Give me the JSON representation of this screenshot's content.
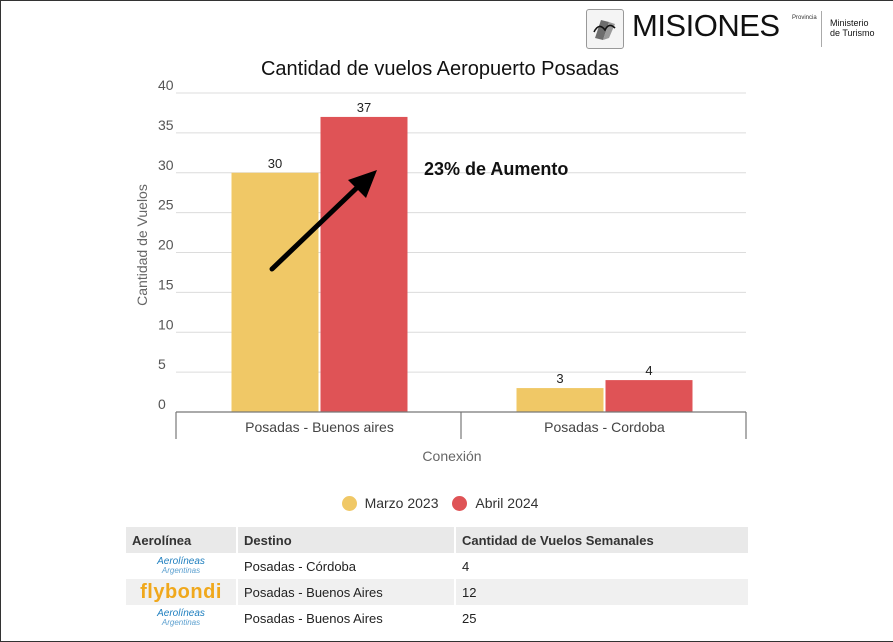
{
  "header": {
    "brand": "MISIONES",
    "brand_superscript": "Provincia",
    "ministry_line1": "Ministerio",
    "ministry_line2": "de Turismo"
  },
  "chart_data": {
    "type": "bar",
    "title": "Cantidad de vuelos Aeropuerto Posadas",
    "xlabel": "Conexión",
    "ylabel": "Cantidad de Vuelos",
    "ylim": [
      0,
      40
    ],
    "yticks": [
      "0",
      "5",
      "10",
      "15",
      "20",
      "25",
      "30",
      "35",
      "40"
    ],
    "grid": true,
    "legend_position": "bottom",
    "categories": [
      "Posadas - Buenos aires",
      "Posadas - Cordoba"
    ],
    "series": [
      {
        "name": "Marzo 2023",
        "color": "#f0c866",
        "values": [
          30,
          3
        ]
      },
      {
        "name": "Abril 2024",
        "color": "#df5356",
        "values": [
          37,
          4
        ]
      }
    ],
    "annotation": "23% de Aumento"
  },
  "table": {
    "headers": [
      "Aerolínea",
      "Destino",
      "Cantidad de Vuelos Semanales"
    ],
    "rows": [
      {
        "airline_logo": "Aerolíneas",
        "airline_logo_sub": "Argentinas",
        "destino": "Posadas - Córdoba",
        "cantidad": "4"
      },
      {
        "airline_logo": "flybondi",
        "destino": "Posadas - Buenos Aires",
        "cantidad": "12"
      },
      {
        "airline_logo": "Aerolíneas",
        "airline_logo_sub": "Argentinas",
        "destino": "Posadas - Buenos Aires",
        "cantidad": "25"
      }
    ]
  }
}
